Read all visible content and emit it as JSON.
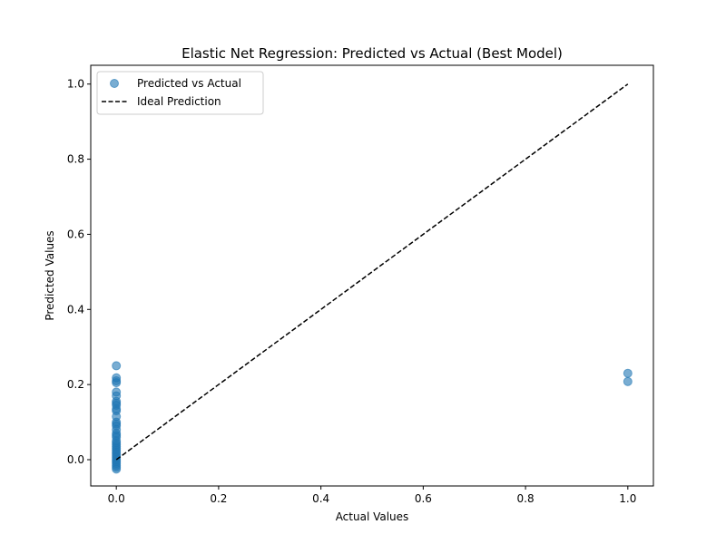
{
  "chart_data": {
    "type": "scatter",
    "title": "Elastic Net Regression: Predicted vs Actual (Best Model)",
    "xlabel": "Actual Values",
    "ylabel": "Predicted Values",
    "xlim": [
      -0.05,
      1.05
    ],
    "ylim": [
      -0.07,
      1.05
    ],
    "x_ticks": [
      0.0,
      0.2,
      0.4,
      0.6,
      0.8,
      1.0
    ],
    "y_ticks": [
      0.0,
      0.2,
      0.4,
      0.6,
      0.8,
      1.0
    ],
    "x_tick_labels": [
      "0.0",
      "0.2",
      "0.4",
      "0.6",
      "0.8",
      "1.0"
    ],
    "y_tick_labels": [
      "0.0",
      "0.2",
      "0.4",
      "0.6",
      "0.8",
      "1.0"
    ],
    "grid": false,
    "legend_position": "top-left",
    "series": [
      {
        "name": "Predicted vs Actual",
        "kind": "scatter",
        "color": "#1f77b4",
        "alpha": 0.6,
        "points": [
          [
            0,
            0.25
          ],
          [
            0,
            0.218
          ],
          [
            0,
            0.21
          ],
          [
            0,
            0.205
          ],
          [
            0,
            0.18
          ],
          [
            0,
            0.17
          ],
          [
            0,
            0.155
          ],
          [
            0,
            0.15
          ],
          [
            0,
            0.145
          ],
          [
            0,
            0.135
          ],
          [
            0,
            0.13
          ],
          [
            0,
            0.115
          ],
          [
            0,
            0.1
          ],
          [
            0,
            0.095
          ],
          [
            0,
            0.09
          ],
          [
            0,
            0.08
          ],
          [
            0,
            0.07
          ],
          [
            0,
            0.065
          ],
          [
            0,
            0.06
          ],
          [
            0,
            0.05
          ],
          [
            0,
            0.045
          ],
          [
            0,
            0.04
          ],
          [
            0,
            0.035
          ],
          [
            0,
            0.03
          ],
          [
            0,
            0.025
          ],
          [
            0,
            0.02
          ],
          [
            0,
            0.015
          ],
          [
            0,
            0.01
          ],
          [
            0,
            0.005
          ],
          [
            0,
            0.0
          ],
          [
            0,
            -0.005
          ],
          [
            0,
            -0.01
          ],
          [
            0,
            -0.015
          ],
          [
            0,
            -0.02
          ],
          [
            0,
            -0.025
          ],
          [
            1,
            0.23
          ],
          [
            1,
            0.208
          ]
        ]
      },
      {
        "name": "Ideal Prediction",
        "kind": "line",
        "style": "dashed",
        "color": "#000000",
        "points": [
          [
            0,
            0
          ],
          [
            1,
            1
          ]
        ]
      }
    ]
  }
}
